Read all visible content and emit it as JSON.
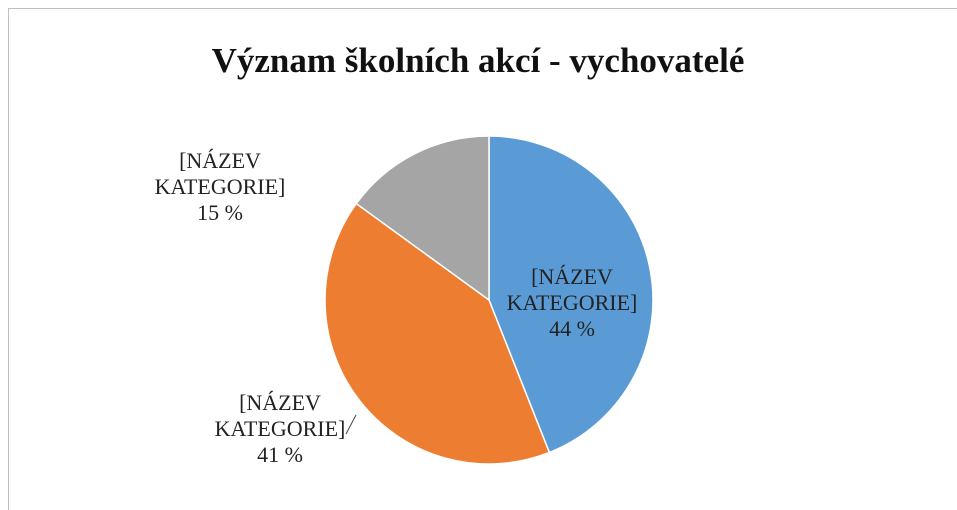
{
  "chart_data": {
    "type": "pie",
    "title": "Význam školních akcí - vychovatelé",
    "categories": [
      "[NÁZEV KATEGORIE]",
      "[NÁZEV KATEGORIE]",
      "[NÁZEV KATEGORIE]"
    ],
    "values": [
      44,
      41,
      15
    ],
    "value_labels": [
      "44 %",
      "41 %",
      "15 %"
    ],
    "colors": [
      "#5b9bd5",
      "#ed7d31",
      "#a5a5a5"
    ]
  }
}
